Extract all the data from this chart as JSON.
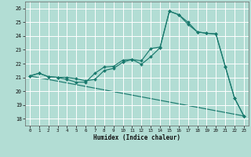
{
  "xlabel": "Humidex (Indice chaleur)",
  "bg_color": "#b2ddd4",
  "grid_color": "#ffffff",
  "line_color": "#1a7a6e",
  "xlim_min": -0.5,
  "xlim_max": 23.5,
  "ylim_min": 17.5,
  "ylim_max": 26.5,
  "xticks": [
    0,
    1,
    2,
    3,
    4,
    5,
    6,
    7,
    8,
    9,
    10,
    11,
    12,
    13,
    14,
    15,
    16,
    17,
    18,
    19,
    20,
    21,
    22,
    23
  ],
  "yticks": [
    18,
    19,
    20,
    21,
    22,
    23,
    24,
    25,
    26
  ],
  "line1_x": [
    0,
    1,
    2,
    3,
    4,
    5,
    6,
    7,
    8,
    9,
    10,
    11,
    12,
    13,
    14,
    15,
    16,
    17,
    18,
    19,
    20,
    21,
    22,
    23
  ],
  "line1_y": [
    21.1,
    21.3,
    21.05,
    21.0,
    20.85,
    20.65,
    20.65,
    21.3,
    21.75,
    21.8,
    22.25,
    22.3,
    22.2,
    23.1,
    23.2,
    25.8,
    25.55,
    25.0,
    24.3,
    24.2,
    24.15,
    21.8,
    19.5,
    18.2
  ],
  "line2_x": [
    0,
    1,
    2,
    3,
    4,
    5,
    6,
    7,
    8,
    9,
    10,
    11,
    12,
    13,
    14,
    15,
    16,
    17,
    18,
    19,
    20,
    21,
    22,
    23
  ],
  "line2_y": [
    21.1,
    21.3,
    21.05,
    21.0,
    21.0,
    20.9,
    20.75,
    20.85,
    21.5,
    21.65,
    22.1,
    22.3,
    21.95,
    22.5,
    23.15,
    25.8,
    25.55,
    24.85,
    24.3,
    24.2,
    24.15,
    21.8,
    19.5,
    18.2
  ],
  "line3_x": [
    0,
    23
  ],
  "line3_y": [
    21.1,
    18.2
  ]
}
